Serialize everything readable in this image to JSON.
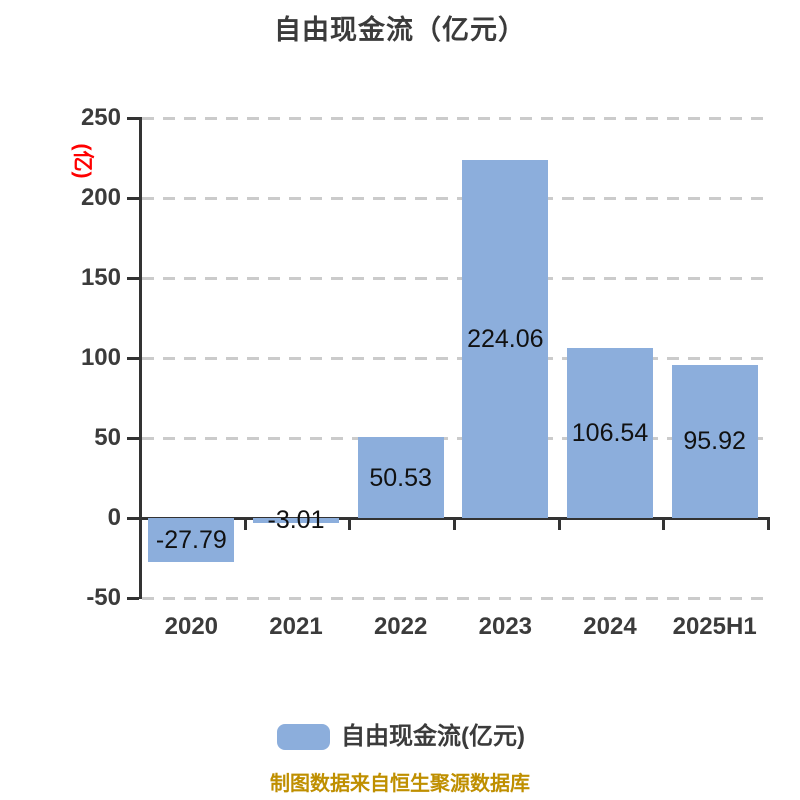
{
  "title": "自由现金流（亿元）",
  "footer": "制图数据来自恒生聚源数据库",
  "legend": {
    "label": "自由现金流(亿元)",
    "swatch_color": "#8CAEDC"
  },
  "chart_data": {
    "type": "bar",
    "title": "自由现金流（亿元）",
    "categories": [
      "2020",
      "2021",
      "2022",
      "2023",
      "2024",
      "2025H1"
    ],
    "series": [
      {
        "name": "自由现金流(亿元)",
        "values": [
          -27.79,
          -3.01,
          50.53,
          224.06,
          106.54,
          95.92
        ]
      }
    ],
    "values": [
      -27.79,
      -3.01,
      50.53,
      224.06,
      106.54,
      95.92
    ],
    "value_labels": [
      "-27.79",
      "-3.01",
      "50.53",
      "224.06",
      "106.54",
      "95.92"
    ],
    "xlabel": "",
    "ylabel": "(亿)",
    "ylim": [
      -50,
      250
    ],
    "y_ticks": [
      250,
      200,
      150,
      100,
      50,
      0,
      -50
    ],
    "grid": "horizontal-dashed",
    "legend_position": "bottom",
    "colors": {
      "bar": "#8CAEDC",
      "title": "#3B3B3B",
      "axis": "#333333",
      "grid": "#CBCBCB",
      "tick_label": "#3B3B3B",
      "value_label": "#111111",
      "y_axis_name": "#FF0000",
      "footer": "#BF8F00"
    }
  }
}
